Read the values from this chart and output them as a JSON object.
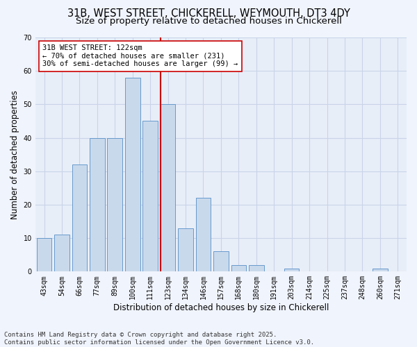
{
  "title": "31B, WEST STREET, CHICKERELL, WEYMOUTH, DT3 4DY",
  "subtitle": "Size of property relative to detached houses in Chickerell",
  "xlabel": "Distribution of detached houses by size in Chickerell",
  "ylabel": "Number of detached properties",
  "categories": [
    "43sqm",
    "54sqm",
    "66sqm",
    "77sqm",
    "89sqm",
    "100sqm",
    "111sqm",
    "123sqm",
    "134sqm",
    "146sqm",
    "157sqm",
    "168sqm",
    "180sqm",
    "191sqm",
    "203sqm",
    "214sqm",
    "225sqm",
    "237sqm",
    "248sqm",
    "260sqm",
    "271sqm"
  ],
  "values": [
    10,
    11,
    32,
    40,
    40,
    58,
    45,
    50,
    13,
    22,
    6,
    2,
    2,
    0,
    1,
    0,
    0,
    0,
    0,
    1,
    0
  ],
  "bar_color": "#c9d9ec",
  "bar_edge_color": "#6699cc",
  "vline_color": "#cc0000",
  "annotation_text": "31B WEST STREET: 122sqm\n← 70% of detached houses are smaller (231)\n30% of semi-detached houses are larger (99) →",
  "annotation_box_color": "#ffffff",
  "annotation_box_edge": "#cc0000",
  "ylim": [
    0,
    70
  ],
  "yticks": [
    0,
    10,
    20,
    30,
    40,
    50,
    60,
    70
  ],
  "grid_color": "#c8d4e8",
  "bg_color": "#e8eef8",
  "fig_bg_color": "#f0f4fc",
  "footer": "Contains HM Land Registry data © Crown copyright and database right 2025.\nContains public sector information licensed under the Open Government Licence v3.0.",
  "title_fontsize": 10.5,
  "subtitle_fontsize": 9.5,
  "axis_label_fontsize": 8.5,
  "tick_fontsize": 7,
  "annotation_fontsize": 7.5,
  "footer_fontsize": 6.5
}
